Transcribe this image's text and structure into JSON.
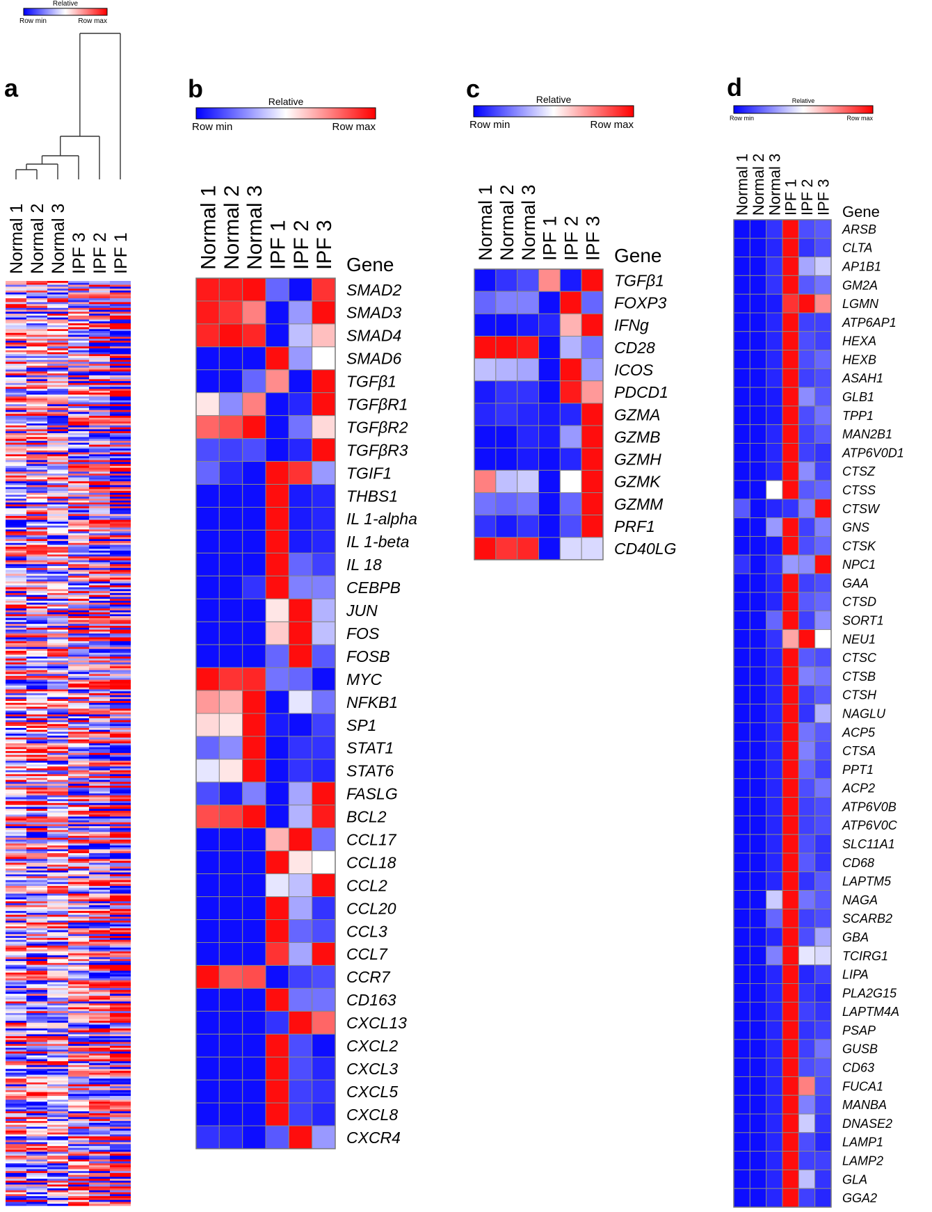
{
  "colors": {
    "low": "#0000ff",
    "mid": "#ffffff",
    "high": "#ff0000",
    "grid": "#888888",
    "frame": "#000000"
  },
  "legend": {
    "title": "Relative",
    "min_label": "Row min",
    "max_label": "Row max"
  },
  "panels": {
    "a": {
      "letter": "a",
      "columns": [
        "Normal 1",
        "Normal 2",
        "Normal 3",
        "IPF 3",
        "IPF 2",
        "IPF 1"
      ]
    },
    "b": {
      "letter": "b",
      "gene_header": "Gene"
    },
    "c": {
      "letter": "c",
      "gene_header": "Gene"
    },
    "d": {
      "letter": "d",
      "gene_header": "Gene"
    }
  },
  "chart_data": [
    {
      "panel": "a",
      "type": "heatmap",
      "x": [
        "Normal 1",
        "Normal 2",
        "Normal 3",
        "IPF 3",
        "IPF 2",
        "IPF 1"
      ],
      "color_scale": {
        "min_label": "Row min",
        "max_label": "Row max",
        "title": "Relative"
      },
      "dendrogram": "columns"
    },
    {
      "panel": "b",
      "type": "heatmap",
      "x": [
        "Normal 1",
        "Normal 2",
        "Normal 3",
        "IPF 1",
        "IPF 2",
        "IPF 3"
      ],
      "y": [
        "SMAD2",
        "SMAD3",
        "SMAD4",
        "SMAD6",
        "TGFβ1",
        "TGFβR1",
        "TGFβR2",
        "TGFβR3",
        "TGIF1",
        "THBS1",
        "IL 1-alpha",
        "IL 1-beta",
        "IL 18",
        "CEBPB",
        "JUN",
        "FOS",
        "FOSB",
        "MYC",
        "NFKB1",
        "SP1",
        "STAT1",
        "STAT6",
        "FASLG",
        "BCL2",
        "CCL17",
        "CCL18",
        "CCL2",
        "CCL20",
        "CCL3",
        "CCL7",
        "CCR7",
        "CD163",
        "CXCL13",
        "CXCL2",
        "CXCL3",
        "CXCL5",
        "CXCL8",
        "CXCR4"
      ],
      "values": [
        [
          0.9,
          0.9,
          0.95,
          -0.6,
          -0.95,
          0.8
        ],
        [
          0.9,
          0.8,
          0.5,
          -0.95,
          -0.4,
          0.95
        ],
        [
          0.85,
          0.95,
          0.85,
          -0.95,
          -0.25,
          0.25
        ],
        [
          -0.95,
          -0.95,
          -0.95,
          0.95,
          -0.4,
          0.0
        ],
        [
          -0.95,
          -0.95,
          -0.6,
          0.45,
          -0.95,
          0.95
        ],
        [
          0.1,
          -0.45,
          0.5,
          -0.95,
          -0.85,
          0.95
        ],
        [
          0.6,
          0.7,
          0.95,
          -0.95,
          -0.55,
          0.15
        ],
        [
          -0.7,
          -0.75,
          -0.7,
          -0.95,
          -0.85,
          0.95
        ],
        [
          -0.6,
          -0.85,
          -0.95,
          0.95,
          0.8,
          -0.4
        ],
        [
          -0.95,
          -0.95,
          -0.95,
          0.95,
          -0.9,
          -0.85
        ],
        [
          -0.95,
          -0.95,
          -0.95,
          0.95,
          -0.9,
          -0.85
        ],
        [
          -0.95,
          -0.95,
          -0.95,
          0.95,
          -0.9,
          -0.85
        ],
        [
          -0.95,
          -0.95,
          -0.95,
          0.95,
          -0.6,
          -0.75
        ],
        [
          -0.95,
          -0.95,
          -0.8,
          0.95,
          -0.5,
          -0.5
        ],
        [
          -0.95,
          -0.95,
          -0.95,
          0.1,
          0.95,
          -0.3
        ],
        [
          -0.95,
          -0.95,
          -0.95,
          0.2,
          0.95,
          -0.25
        ],
        [
          -0.95,
          -0.95,
          -0.95,
          -0.6,
          0.95,
          -0.65
        ],
        [
          0.95,
          0.8,
          0.85,
          -0.55,
          -0.6,
          -0.95
        ],
        [
          0.4,
          0.3,
          0.95,
          -0.95,
          -0.1,
          -0.55
        ],
        [
          0.15,
          0.1,
          0.95,
          -0.9,
          -0.95,
          -0.75
        ],
        [
          -0.6,
          -0.45,
          0.95,
          -0.95,
          -0.8,
          -0.8
        ],
        [
          -0.1,
          0.1,
          0.95,
          -0.95,
          -0.8,
          -0.85
        ],
        [
          -0.7,
          -0.9,
          -0.5,
          -0.95,
          -0.35,
          0.95
        ],
        [
          0.7,
          0.75,
          0.95,
          -0.95,
          -0.3,
          0.9
        ],
        [
          -0.95,
          -0.95,
          -0.95,
          0.3,
          0.95,
          -0.55
        ],
        [
          -0.95,
          -0.95,
          -0.95,
          0.95,
          0.1,
          0.0
        ],
        [
          -0.95,
          -0.95,
          -0.95,
          -0.1,
          -0.25,
          0.95
        ],
        [
          -0.95,
          -0.95,
          -0.95,
          0.95,
          -0.35,
          -0.8
        ],
        [
          -0.95,
          -0.95,
          -0.95,
          0.95,
          -0.6,
          -0.7
        ],
        [
          -0.95,
          -0.95,
          -0.95,
          0.8,
          -0.35,
          0.95
        ],
        [
          0.95,
          0.65,
          0.7,
          -0.95,
          -0.75,
          -0.7
        ],
        [
          -0.95,
          -0.95,
          -0.95,
          0.95,
          -0.55,
          -0.55
        ],
        [
          -0.95,
          -0.95,
          -0.95,
          -0.8,
          0.95,
          0.6
        ],
        [
          -0.95,
          -0.95,
          -0.95,
          0.95,
          -0.7,
          -0.95
        ],
        [
          -0.95,
          -0.95,
          -0.95,
          0.95,
          -0.7,
          -0.85
        ],
        [
          -0.95,
          -0.95,
          -0.95,
          0.95,
          -0.75,
          -0.8
        ],
        [
          -0.95,
          -0.95,
          -0.95,
          0.95,
          -0.75,
          -0.85
        ],
        [
          -0.8,
          -0.85,
          -0.95,
          -0.65,
          0.95,
          -0.4
        ]
      ]
    },
    {
      "panel": "c",
      "type": "heatmap",
      "x": [
        "Normal 1",
        "Normal 2",
        "Normal 3",
        "IPF 1",
        "IPF 2",
        "IPF 3"
      ],
      "y": [
        "TGFβ1",
        "FOXP3",
        "IFNg",
        "CD28",
        "ICOS",
        "PDCD1",
        "GZMA",
        "GZMB",
        "GZMH",
        "GZMK",
        "GZMM",
        "PRF1",
        "CD40LG"
      ],
      "values": [
        [
          -0.95,
          -0.8,
          -0.7,
          0.45,
          -0.9,
          0.95
        ],
        [
          -0.6,
          -0.5,
          -0.5,
          -0.95,
          0.95,
          -0.6
        ],
        [
          -0.95,
          -0.95,
          -0.9,
          -0.85,
          0.3,
          0.95
        ],
        [
          0.95,
          0.95,
          0.9,
          -0.95,
          -0.3,
          -0.55
        ],
        [
          -0.25,
          -0.3,
          -0.35,
          -0.95,
          0.95,
          -0.4
        ],
        [
          -0.9,
          -0.8,
          -0.8,
          -0.95,
          0.9,
          0.4
        ],
        [
          -0.85,
          -0.8,
          -0.85,
          -0.9,
          -0.85,
          0.95
        ],
        [
          -0.95,
          -0.95,
          -0.85,
          -0.9,
          -0.4,
          0.95
        ],
        [
          -0.95,
          -0.95,
          -0.9,
          -0.95,
          -0.85,
          0.95
        ],
        [
          0.5,
          -0.25,
          -0.2,
          -0.95,
          0.0,
          0.95
        ],
        [
          -0.55,
          -0.6,
          -0.55,
          -0.95,
          -0.6,
          0.95
        ],
        [
          -0.8,
          -0.9,
          -0.8,
          -0.95,
          -0.7,
          0.95
        ],
        [
          0.95,
          0.8,
          0.85,
          -0.95,
          -0.15,
          -0.15
        ]
      ]
    },
    {
      "panel": "d",
      "type": "heatmap",
      "x": [
        "Normal 1",
        "Normal 2",
        "Normal 3",
        "IPF 1",
        "IPF 2",
        "IPF 3"
      ],
      "y": [
        "ARSB",
        "CLTA",
        "AP1B1",
        "GM2A",
        "LGMN",
        "ATP6AP1",
        "HEXA",
        "HEXB",
        "ASAH1",
        "GLB1",
        "TPP1",
        "MAN2B1",
        "ATP6V0D1",
        "CTSZ",
        "CTSS",
        "CTSW",
        "GNS",
        "CTSK",
        "NPC1",
        "GAA",
        "CTSD",
        "SORT1",
        "NEU1",
        "CTSC",
        "CTSB",
        "CTSH",
        "NAGLU",
        "ACP5",
        "CTSA",
        "PPT1",
        "ACP2",
        "ATP6V0B",
        "ATP6V0C",
        "SLC11A1",
        "CD68",
        "LAPTM5",
        "NAGA",
        "SCARB2",
        "GBA",
        "TCIRG1",
        "LIPA",
        "PLA2G15",
        "LAPTM4A",
        "PSAP",
        "GUSB",
        "CD63",
        "FUCA1",
        "MANBA",
        "DNASE2",
        "LAMP1",
        "LAMP2",
        "GLA",
        "GGA2"
      ],
      "values": [
        [
          -0.95,
          -0.95,
          -0.8,
          0.95,
          -0.7,
          -0.65
        ],
        [
          -0.95,
          -0.95,
          -0.85,
          0.95,
          -0.8,
          -0.7
        ],
        [
          -0.95,
          -0.95,
          -0.8,
          0.95,
          -0.35,
          -0.2
        ],
        [
          -0.95,
          -0.95,
          -0.8,
          0.95,
          -0.65,
          -0.55
        ],
        [
          -0.95,
          -0.95,
          -0.9,
          0.8,
          0.95,
          0.45
        ],
        [
          -0.95,
          -0.95,
          -0.85,
          0.95,
          -0.75,
          -0.75
        ],
        [
          -0.95,
          -0.95,
          -0.85,
          0.95,
          -0.7,
          -0.75
        ],
        [
          -0.95,
          -0.95,
          -0.85,
          0.95,
          -0.7,
          -0.6
        ],
        [
          -0.95,
          -0.95,
          -0.85,
          0.95,
          -0.75,
          -0.7
        ],
        [
          -0.95,
          -0.95,
          -0.9,
          0.95,
          -0.45,
          -0.65
        ],
        [
          -0.95,
          -0.95,
          -0.9,
          0.95,
          -0.7,
          -0.55
        ],
        [
          -0.95,
          -0.95,
          -0.85,
          0.95,
          -0.75,
          -0.65
        ],
        [
          -0.95,
          -0.95,
          -0.85,
          0.95,
          -0.75,
          -0.8
        ],
        [
          -0.95,
          -0.95,
          -0.85,
          0.95,
          -0.45,
          -0.75
        ],
        [
          -0.95,
          -0.95,
          0.0,
          0.95,
          -0.65,
          -0.6
        ],
        [
          -0.65,
          -0.95,
          -0.85,
          -0.8,
          -0.5,
          0.95
        ],
        [
          -0.95,
          -0.95,
          -0.4,
          0.95,
          -0.75,
          -0.5
        ],
        [
          -0.95,
          -0.95,
          -0.9,
          0.95,
          -0.7,
          -0.6
        ],
        [
          -0.8,
          -0.95,
          -0.8,
          -0.4,
          -0.45,
          0.95
        ],
        [
          -0.95,
          -0.95,
          -0.85,
          0.95,
          -0.75,
          -0.7
        ],
        [
          -0.95,
          -0.95,
          -0.85,
          0.95,
          -0.65,
          -0.6
        ],
        [
          -0.95,
          -0.95,
          -0.6,
          0.95,
          -0.75,
          -0.45
        ],
        [
          -0.95,
          -0.95,
          -0.8,
          0.35,
          0.95,
          0.0
        ],
        [
          -0.95,
          -0.95,
          -0.85,
          0.95,
          -0.65,
          -0.7
        ],
        [
          -0.95,
          -0.95,
          -0.85,
          0.95,
          -0.5,
          -0.55
        ],
        [
          -0.95,
          -0.95,
          -0.85,
          0.95,
          -0.75,
          -0.65
        ],
        [
          -0.95,
          -0.95,
          -0.85,
          0.95,
          -0.8,
          -0.3
        ],
        [
          -0.95,
          -0.95,
          -0.85,
          0.95,
          -0.55,
          -0.65
        ],
        [
          -0.95,
          -0.95,
          -0.85,
          0.95,
          -0.5,
          -0.7
        ],
        [
          -0.95,
          -0.95,
          -0.85,
          0.95,
          -0.6,
          -0.75
        ],
        [
          -0.95,
          -0.95,
          -0.85,
          0.95,
          -0.7,
          -0.55
        ],
        [
          -0.95,
          -0.95,
          -0.85,
          0.95,
          -0.75,
          -0.7
        ],
        [
          -0.95,
          -0.95,
          -0.85,
          0.95,
          -0.75,
          -0.7
        ],
        [
          -0.95,
          -0.95,
          -0.85,
          0.95,
          -0.7,
          -0.8
        ],
        [
          -0.95,
          -0.95,
          -0.85,
          0.95,
          -0.65,
          -0.8
        ],
        [
          -0.95,
          -0.95,
          -0.85,
          0.95,
          -0.8,
          -0.65
        ],
        [
          -0.95,
          -0.95,
          -0.2,
          0.95,
          -0.55,
          -0.65
        ],
        [
          -0.95,
          -0.95,
          -0.6,
          0.95,
          -0.75,
          -0.7
        ],
        [
          -0.95,
          -0.95,
          -0.85,
          0.95,
          -0.7,
          -0.35
        ],
        [
          -0.95,
          -0.95,
          -0.5,
          0.95,
          -0.1,
          -0.15
        ],
        [
          -0.95,
          -0.95,
          -0.85,
          0.95,
          -0.85,
          -0.75
        ],
        [
          -0.95,
          -0.95,
          -0.85,
          0.95,
          -0.8,
          -0.85
        ],
        [
          -0.95,
          -0.95,
          -0.85,
          0.95,
          -0.75,
          -0.8
        ],
        [
          -0.95,
          -0.95,
          -0.85,
          0.95,
          -0.8,
          -0.75
        ],
        [
          -0.95,
          -0.95,
          -0.85,
          0.95,
          -0.75,
          -0.55
        ],
        [
          -0.95,
          -0.95,
          -0.85,
          0.95,
          -0.7,
          -0.65
        ],
        [
          -0.95,
          -0.95,
          -0.85,
          0.95,
          0.5,
          -0.7
        ],
        [
          -0.95,
          -0.95,
          -0.85,
          0.95,
          -0.5,
          -0.75
        ],
        [
          -0.95,
          -0.95,
          -0.85,
          0.95,
          -0.2,
          -0.8
        ],
        [
          -0.95,
          -0.95,
          -0.85,
          0.95,
          -0.7,
          -0.85
        ],
        [
          -0.95,
          -0.95,
          -0.85,
          0.95,
          -0.75,
          -0.75
        ],
        [
          -0.95,
          -0.95,
          -0.85,
          0.95,
          -0.25,
          -0.8
        ],
        [
          -0.95,
          -0.95,
          -0.85,
          0.95,
          -0.75,
          -0.85
        ]
      ]
    }
  ]
}
